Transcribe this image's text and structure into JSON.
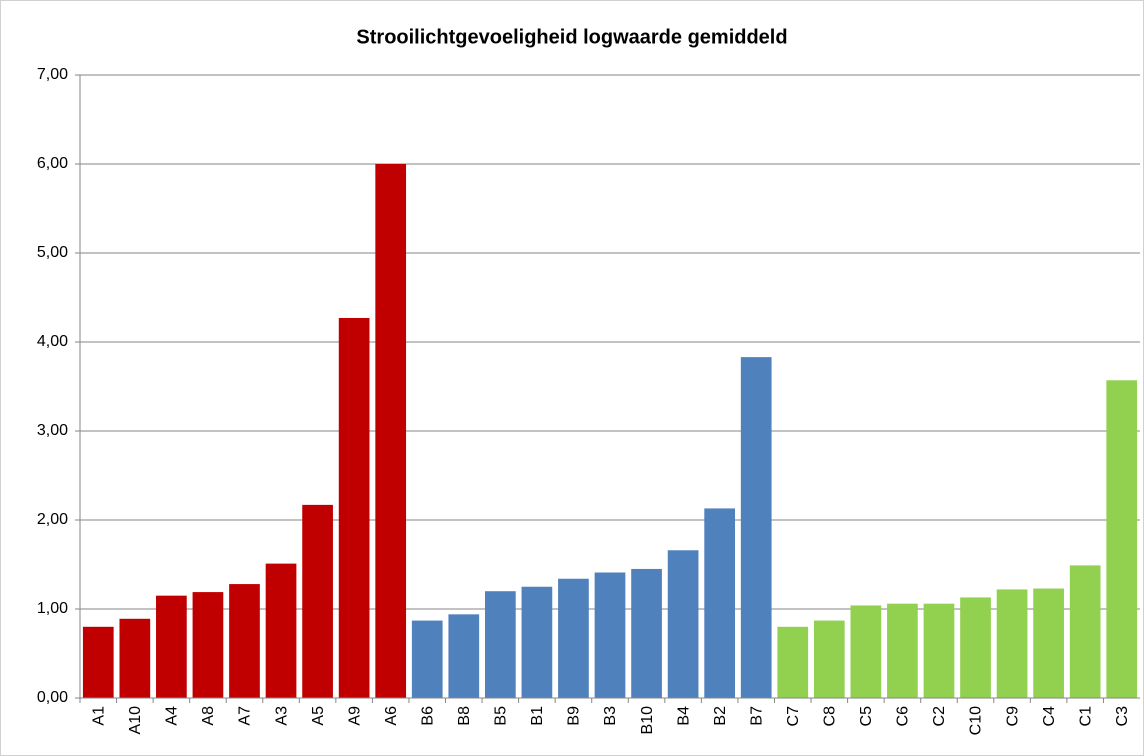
{
  "chart_data": {
    "type": "bar",
    "title": "Strooilichtgevoeligheid logwaarde gemiddeld",
    "categories": [
      "A1",
      "A10",
      "A4",
      "A8",
      "A7",
      "A3",
      "A5",
      "A9",
      "A6",
      "B6",
      "B8",
      "B5",
      "B1",
      "B9",
      "B3",
      "B10",
      "B4",
      "B2",
      "B7",
      "C7",
      "C8",
      "C5",
      "C6",
      "C2",
      "C10",
      "C9",
      "C4",
      "C1",
      "C3"
    ],
    "values": [
      0.8,
      0.89,
      1.15,
      1.19,
      1.28,
      1.51,
      2.17,
      4.27,
      6.0,
      0.87,
      0.94,
      1.2,
      1.25,
      1.34,
      1.41,
      1.45,
      1.66,
      2.13,
      3.83,
      0.8,
      0.87,
      1.04,
      1.06,
      1.06,
      1.13,
      1.22,
      1.23,
      1.49,
      3.57
    ],
    "colors": [
      "#c00000",
      "#c00000",
      "#c00000",
      "#c00000",
      "#c00000",
      "#c00000",
      "#c00000",
      "#c00000",
      "#c00000",
      "#4f81bd",
      "#4f81bd",
      "#4f81bd",
      "#4f81bd",
      "#4f81bd",
      "#4f81bd",
      "#4f81bd",
      "#4f81bd",
      "#4f81bd",
      "#4f81bd",
      "#92d050",
      "#92d050",
      "#92d050",
      "#92d050",
      "#92d050",
      "#92d050",
      "#92d050",
      "#92d050",
      "#92d050",
      "#92d050"
    ],
    "ylim": [
      0,
      7
    ],
    "yticks": [
      {
        "value": 0,
        "label": "0,00"
      },
      {
        "value": 1,
        "label": "1,00"
      },
      {
        "value": 2,
        "label": "2,00"
      },
      {
        "value": 3,
        "label": "3,00"
      },
      {
        "value": 4,
        "label": "4,00"
      },
      {
        "value": 5,
        "label": "5,00"
      },
      {
        "value": 6,
        "label": "6,00"
      },
      {
        "value": 7,
        "label": "7,00"
      }
    ],
    "grid": true
  }
}
